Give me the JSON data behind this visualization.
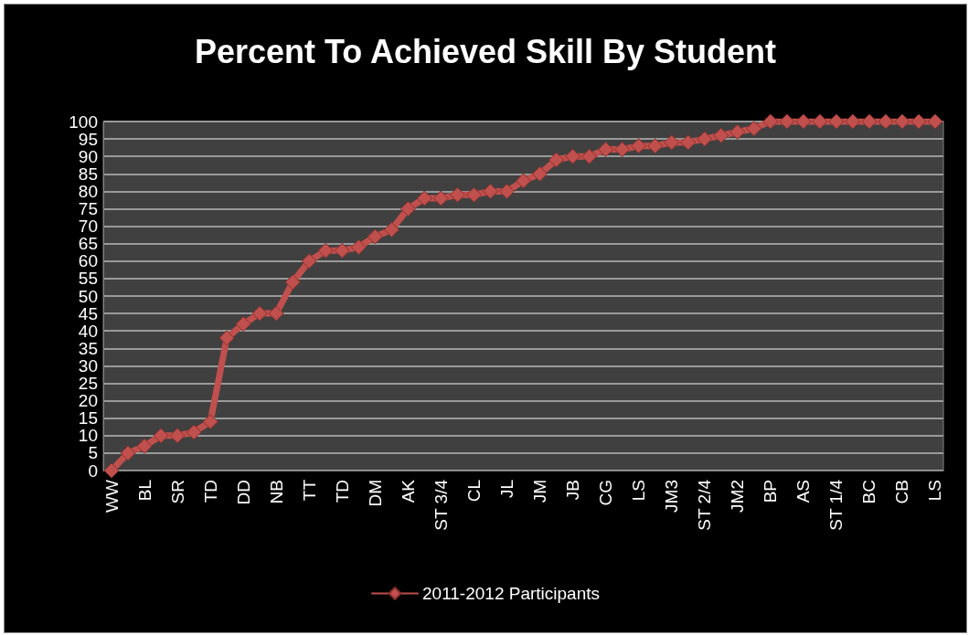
{
  "chart_data": {
    "type": "line",
    "title": "Percent To Achieved Skill By Student",
    "categories": [
      "WW",
      null,
      "BL",
      null,
      "SR",
      null,
      "TD",
      null,
      "DD",
      null,
      "NB",
      null,
      "TT",
      null,
      "TD",
      null,
      "DM",
      null,
      "AK",
      null,
      "ST 3/4",
      null,
      "CL",
      null,
      "JL",
      null,
      "JM",
      null,
      "JB",
      null,
      "CG",
      null,
      "LS",
      null,
      "JM3",
      null,
      "ST 2/4",
      null,
      "JM2",
      null,
      "BP",
      null,
      "AS",
      null,
      "ST 1/4",
      null,
      "BC",
      null,
      "CB",
      null,
      "LS"
    ],
    "series": [
      {
        "name": "2011-2012 Participants",
        "color": "#c0504d",
        "values": [
          0,
          5,
          7,
          10,
          10,
          11,
          14,
          38,
          42,
          45,
          45,
          54,
          60,
          63,
          63,
          64,
          67,
          69,
          75,
          78,
          78,
          79,
          79,
          80,
          80,
          83,
          85,
          89,
          90,
          90,
          92,
          92,
          93,
          93,
          94,
          94,
          95,
          96,
          97,
          98,
          100,
          100,
          100,
          100,
          100,
          100,
          100,
          100,
          100,
          100,
          100
        ]
      }
    ],
    "ylim": [
      0,
      100
    ],
    "yticks": [
      0,
      5,
      10,
      15,
      20,
      25,
      30,
      35,
      40,
      45,
      50,
      55,
      60,
      65,
      70,
      75,
      80,
      85,
      90,
      95,
      100
    ],
    "grid": "y",
    "legend": "bottom",
    "marker": "diamond",
    "line_style": "solid"
  }
}
